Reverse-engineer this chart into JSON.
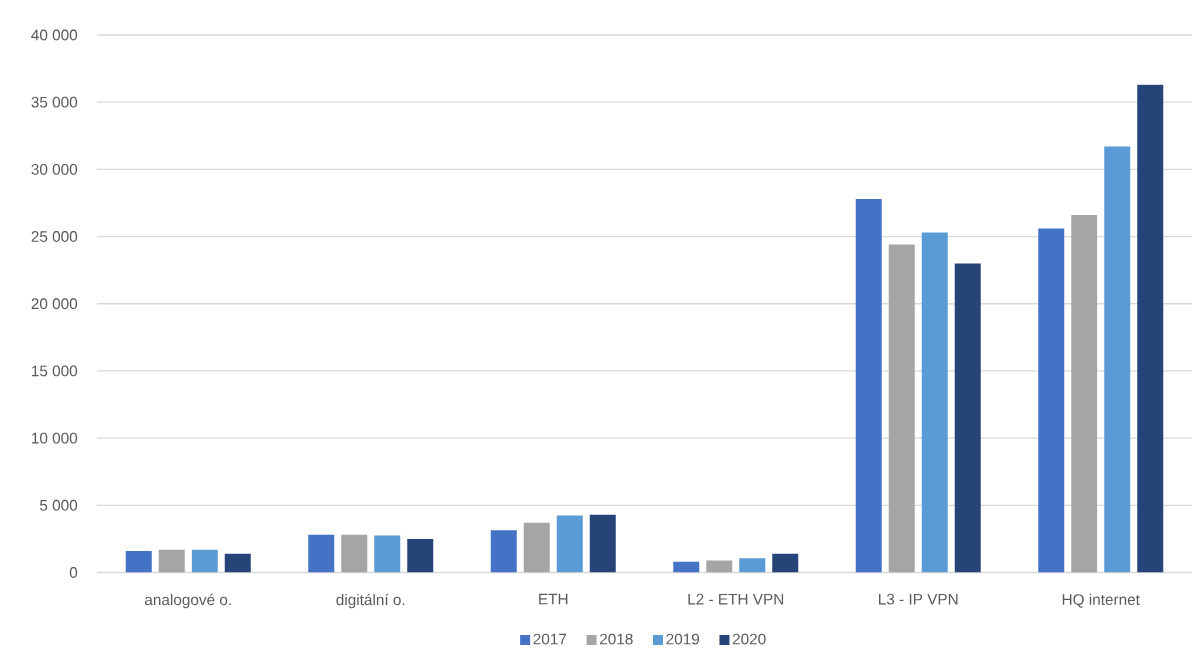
{
  "chart_data": {
    "type": "bar",
    "categories": [
      "analogové o.",
      "digitální o.",
      "ETH",
      "L2 - ETH VPN",
      "L3 - IP VPN",
      "HQ internet"
    ],
    "series": [
      {
        "name": "2017",
        "color": "#4472c4",
        "values": [
          1600,
          2800,
          3150,
          800,
          27800,
          25600
        ]
      },
      {
        "name": "2018",
        "color": "#a5a5a5",
        "values": [
          1700,
          2800,
          3700,
          900,
          24400,
          26600
        ]
      },
      {
        "name": "2019",
        "color": "#5b9bd5",
        "values": [
          1700,
          2750,
          4250,
          1050,
          25300,
          31700
        ]
      },
      {
        "name": "2020",
        "color": "#264478",
        "values": [
          1400,
          2500,
          4300,
          1400,
          23000,
          36300
        ]
      }
    ],
    "ylim": [
      0,
      40000
    ],
    "yticks": [
      0,
      {
        "value": 5000,
        "label": "5 000"
      },
      {
        "value": 10000,
        "label": "10 000"
      },
      {
        "value": 15000,
        "label": "15 000"
      },
      {
        "value": 20000,
        "label": "20 000"
      },
      {
        "value": 25000,
        "label": "25 000"
      },
      {
        "value": 30000,
        "label": "30 000"
      },
      {
        "value": 35000,
        "label": "35 000"
      },
      {
        "value": 40000,
        "label": "40 000"
      }
    ],
    "grid": "y",
    "legend": "bottom"
  }
}
